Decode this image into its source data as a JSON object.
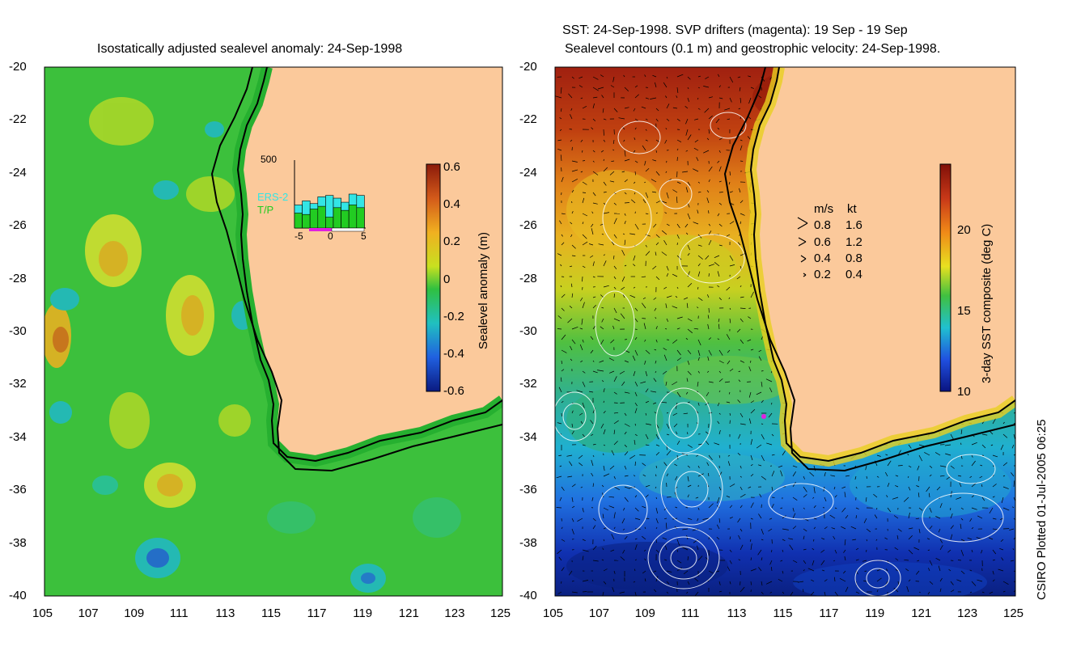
{
  "left_panel": {
    "title": "Isostatically adjusted sealevel anomaly: 24-Sep-1998",
    "colorbar": {
      "label": "Sealevel anomaly (m)",
      "ticks": [
        "0.6",
        "0.4",
        "0.2",
        "0",
        "-0.2",
        "-0.4",
        "-0.6"
      ]
    },
    "inset": {
      "ymax_label": "500",
      "x_ticks": [
        "-5",
        "0",
        "5"
      ],
      "legend": [
        "ERS-2",
        "T/P"
      ],
      "ers2_color": "#33e5e5",
      "tp_color": "#22cc22",
      "ers2_counts": [
        170,
        200,
        180,
        230,
        240,
        220,
        190,
        250,
        240
      ],
      "tp_counts": [
        110,
        100,
        140,
        160,
        80,
        150,
        130,
        170,
        150
      ]
    }
  },
  "right_panel": {
    "title_line1": "SST: 24-Sep-1998. SVP drifters (magenta): 19 Sep - 19 Sep",
    "title_line2": "Sealevel contours (0.1 m) and geostrophic velocity: 24-Sep-1998.",
    "colorbar": {
      "label": "3-day SST composite (deg C)",
      "ticks": [
        "20",
        "15",
        "10"
      ]
    },
    "velocity_legend": {
      "header_ms": "m/s",
      "header_kt": "kt",
      "rows": [
        {
          "ms": "0.8",
          "kt": "1.6"
        },
        {
          "ms": "0.6",
          "kt": "1.2"
        },
        {
          "ms": "0.4",
          "kt": "0.8"
        },
        {
          "ms": "0.2",
          "kt": "0.4"
        }
      ]
    }
  },
  "axes": {
    "y_ticks": [
      "-20",
      "-22",
      "-24",
      "-26",
      "-28",
      "-30",
      "-32",
      "-34",
      "-36",
      "-38",
      "-40"
    ],
    "x_ticks": [
      "105",
      "107",
      "109",
      "111",
      "113",
      "115",
      "117",
      "119",
      "121",
      "123",
      "125"
    ]
  },
  "credit": "CSIRO Plotted 01-Jul-2005 06:25",
  "colors": {
    "land": "#fbc99b",
    "coast": "#000000",
    "ssh_base": "#3cc03c",
    "sst_warm": "#a02010",
    "sst_cold": "#0a2a8a"
  }
}
